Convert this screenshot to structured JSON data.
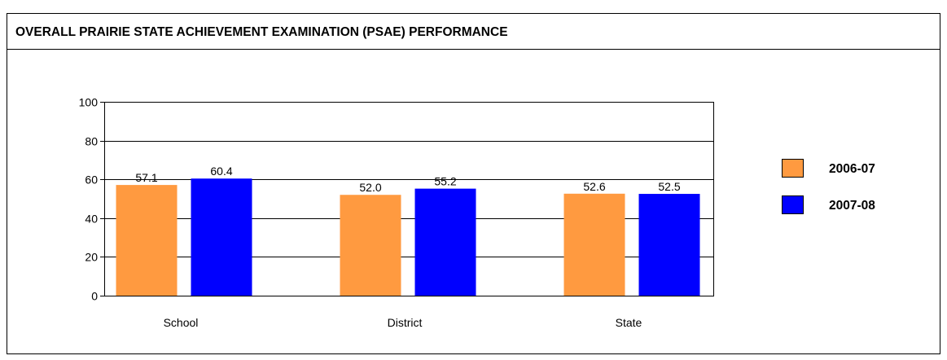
{
  "chart_data": {
    "type": "bar",
    "title": "OVERALL PRAIRIE STATE ACHIEVEMENT EXAMINATION (PSAE) PERFORMANCE",
    "categories": [
      "School",
      "District",
      "State"
    ],
    "series": [
      {
        "name": "2006-07",
        "color": "#ff9a40",
        "values": [
          57.1,
          52,
          52.6
        ],
        "value_labels": [
          "57.1",
          "52.0",
          "52.6"
        ]
      },
      {
        "name": "2007-08",
        "color": "#0000ff",
        "values": [
          60.4,
          55.2,
          52.5
        ],
        "value_labels": [
          "60.4",
          "55.2",
          "52.5"
        ]
      }
    ],
    "ylim": [
      0,
      100
    ],
    "yticks": [
      0,
      20,
      40,
      60,
      80,
      100
    ],
    "grid": true,
    "legend": "right"
  }
}
